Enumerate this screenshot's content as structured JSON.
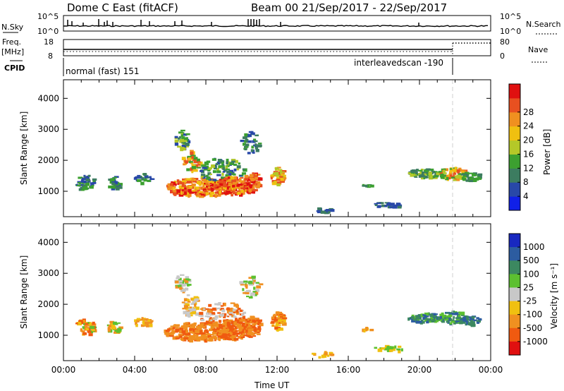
{
  "header": {
    "title": "Dome C East (fitACF)",
    "beam_label": "Beam 00  21/Sep/2017 - 22/Sep/2017"
  },
  "panels": {
    "nsky": {
      "label": "N.Sky",
      "right_label": "N.Search",
      "yticks": [
        "10^5",
        "10^0"
      ],
      "right_yticks": [
        "10^5",
        "10^0"
      ]
    },
    "freq": {
      "label_line1": "Freq.",
      "label_line2": "[MHz]",
      "right_label": "Nave",
      "yticks": [
        "18",
        "8"
      ],
      "right_yticks": [
        "80",
        "0"
      ]
    },
    "cpid": {
      "label": "CPID",
      "segments": [
        {
          "label": "normal (fast) 151"
        },
        {
          "label": "interleavedscan -190"
        }
      ]
    }
  },
  "chart_data": [
    {
      "type": "heatmap",
      "name": "power",
      "ylabel": "Slant Range [km]",
      "x_range_hours": [
        0,
        24
      ],
      "ylim_km": [
        180,
        4600
      ],
      "yticks": [
        "1000",
        "2000",
        "3000",
        "4000"
      ],
      "colorbar_label": "Power [dB]",
      "colorbar_ticks": [
        "4",
        "8",
        "12",
        "16",
        "20",
        "24",
        "28"
      ],
      "colorbar_colors": [
        "#1020e8",
        "#2848a8",
        "#3c7c60",
        "#3ca030",
        "#b4c828",
        "#f0c010",
        "#f09020",
        "#e85020",
        "#e01010"
      ]
    },
    {
      "type": "heatmap",
      "name": "velocity",
      "ylabel": "Slant Range [km]",
      "x_range_hours": [
        0,
        24
      ],
      "ylim_km": [
        180,
        4600
      ],
      "yticks": [
        "1000",
        "2000",
        "3000",
        "4000"
      ],
      "xlabel": "Time UT",
      "xticks": [
        "00:00",
        "04:00",
        "08:00",
        "12:00",
        "16:00",
        "20:00",
        "00:00"
      ],
      "colorbar_label": "Velocity [m s⁻¹]",
      "colorbar_ticks": [
        "1000",
        "500",
        "100",
        "25",
        "-25",
        "-100",
        "-500",
        "-1000"
      ],
      "colorbar_colors": [
        "#1828c0",
        "#2c5ca0",
        "#3c8860",
        "#5cc030",
        "#c8c8c8",
        "#f0c010",
        "#f09020",
        "#f05a10",
        "#e01010"
      ]
    }
  ],
  "colors": {
    "cpid_switch_line": "#bbbbbb"
  }
}
